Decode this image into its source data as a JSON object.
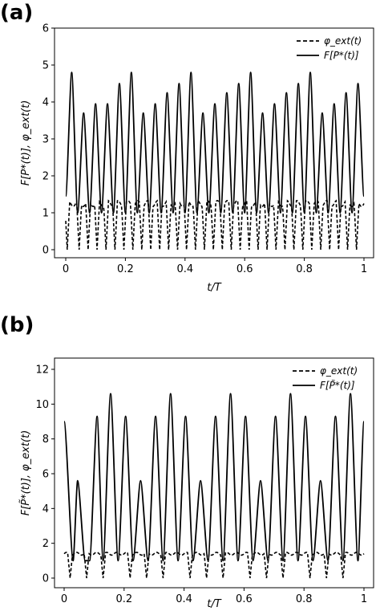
{
  "chart_data": [
    {
      "type": "line",
      "panel_label": "(a)",
      "xlabel": "t/T",
      "ylabel": "F[P*(t)], φ_ext(t)",
      "xlim": [
        0,
        1
      ],
      "ylim": [
        0,
        6
      ],
      "xticks": [
        "0",
        "0.2",
        "0.4",
        "0.6",
        "0.8",
        "1"
      ],
      "yticks": [
        "0",
        "1",
        "2",
        "3",
        "4",
        "5",
        "6"
      ],
      "grid": false,
      "legend_position": "top-right",
      "series": [
        {
          "name": "φ_ext(t)",
          "style": "dashed",
          "color": "#000000",
          "baseline": 1.25,
          "dips_at": [
            0.005,
            0.045,
            0.075,
            0.105,
            0.135,
            0.165,
            0.195,
            0.225,
            0.255,
            0.285,
            0.315,
            0.345,
            0.375,
            0.405,
            0.435,
            0.465,
            0.495,
            0.525,
            0.555,
            0.585,
            0.615,
            0.645,
            0.675,
            0.705,
            0.735,
            0.765,
            0.795,
            0.825,
            0.855,
            0.885,
            0.915,
            0.945,
            0.975
          ],
          "dip_min": 0.0
        },
        {
          "name": "F[P*(t)]",
          "style": "solid",
          "color": "#000000",
          "x": [
            0.0,
            0.02,
            0.04,
            0.06,
            0.08,
            0.1,
            0.12,
            0.14,
            0.16,
            0.18,
            0.2,
            0.22,
            0.24,
            0.26,
            0.28,
            0.3,
            0.32,
            0.34,
            0.36,
            0.38,
            0.4,
            0.42,
            0.44,
            0.46,
            0.48,
            0.5,
            0.52,
            0.54,
            0.56,
            0.58,
            0.6,
            0.62,
            0.64,
            0.66,
            0.68,
            0.7,
            0.72,
            0.74,
            0.76,
            0.78,
            0.8,
            0.82,
            0.84,
            0.86,
            0.88,
            0.9,
            0.92,
            0.94,
            0.96,
            0.98,
            1.0
          ],
          "y": [
            1.45,
            4.8,
            1.0,
            3.7,
            1.0,
            3.95,
            1.0,
            3.95,
            1.0,
            4.5,
            1.0,
            4.8,
            1.0,
            3.7,
            1.0,
            3.95,
            1.0,
            4.25,
            1.0,
            4.5,
            1.0,
            4.8,
            1.0,
            3.7,
            1.0,
            3.95,
            1.0,
            4.25,
            1.0,
            4.5,
            1.0,
            4.8,
            1.0,
            3.7,
            1.0,
            3.95,
            1.0,
            4.25,
            1.0,
            4.5,
            1.0,
            4.8,
            1.0,
            3.7,
            1.0,
            3.95,
            1.0,
            4.25,
            1.0,
            4.5,
            1.45
          ]
        }
      ]
    },
    {
      "type": "line",
      "panel_label": "(b)",
      "xlabel": "t/T",
      "ylabel": "F[P̃*(t)], φ_ext(t)",
      "xlim": [
        0,
        1
      ],
      "ylim": [
        0,
        12
      ],
      "xticks": [
        "0",
        "0.2",
        "0.4",
        "0.6",
        "0.8",
        "1"
      ],
      "yticks": [
        "0",
        "2",
        "4",
        "6",
        "8",
        "10",
        "12"
      ],
      "grid": false,
      "legend_position": "top-right",
      "series": [
        {
          "name": "φ_ext(t)",
          "style": "dashed",
          "color": "#000000",
          "baseline": 1.4,
          "dips_at": [
            0.02,
            0.075,
            0.13,
            0.22,
            0.275,
            0.33,
            0.42,
            0.475,
            0.53,
            0.62,
            0.675,
            0.73,
            0.82,
            0.875,
            0.93
          ],
          "dip_min": 0.0
        },
        {
          "name": "F[P̃*(t)]",
          "style": "solid",
          "color": "#000000",
          "x": [
            0.0,
            0.03,
            0.045,
            0.07,
            0.085,
            0.11,
            0.13,
            0.155,
            0.18,
            0.205,
            0.23,
            0.255,
            0.28,
            0.305,
            0.33,
            0.355,
            0.38,
            0.405,
            0.43,
            0.455,
            0.48,
            0.505,
            0.53,
            0.555,
            0.58,
            0.605,
            0.63,
            0.655,
            0.68,
            0.705,
            0.73,
            0.755,
            0.78,
            0.805,
            0.83,
            0.855,
            0.88,
            0.905,
            0.93,
            0.955,
            0.98,
            1.0
          ],
          "y": [
            9.0,
            1.0,
            5.6,
            1.0,
            1.0,
            9.3,
            1.0,
            10.6,
            1.0,
            9.3,
            1.0,
            5.6,
            1.0,
            9.3,
            1.0,
            10.6,
            1.0,
            9.3,
            1.0,
            5.6,
            1.0,
            9.3,
            1.0,
            10.6,
            1.0,
            9.3,
            1.0,
            5.6,
            1.0,
            9.3,
            1.0,
            10.6,
            1.0,
            9.3,
            1.0,
            5.6,
            1.0,
            9.3,
            1.0,
            10.6,
            1.0,
            9.0
          ]
        }
      ]
    }
  ]
}
